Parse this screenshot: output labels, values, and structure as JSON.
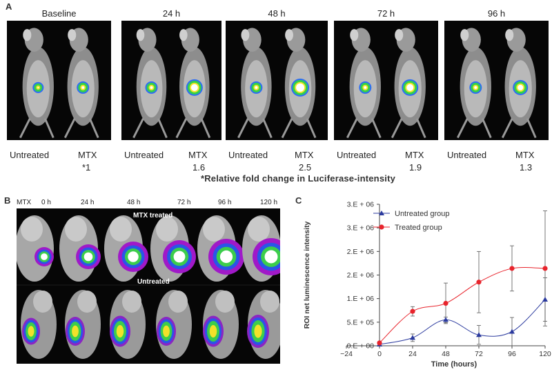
{
  "panelA": {
    "letter": "A",
    "timepoints": [
      {
        "label": "Baseline",
        "untreated": "Untreated",
        "treated": "MTX",
        "fold": "*1"
      },
      {
        "label": "24 h",
        "untreated": "Untreated",
        "treated": "MTX",
        "fold": "1.6"
      },
      {
        "label": "48 h",
        "untreated": "Untreated",
        "treated": "MTX",
        "fold": "2.5"
      },
      {
        "label": "72 h",
        "untreated": "Untreated",
        "treated": "MTX",
        "fold": "1.9"
      },
      {
        "label": "96 h",
        "untreated": "Untreated",
        "treated": "MTX",
        "fold": "1.3"
      }
    ],
    "footnote": "*Relative fold change in  Luciferase-intensity"
  },
  "panelB": {
    "letter": "B",
    "header": [
      "MTX",
      "0 h",
      "24 h",
      "48 h",
      "72 h",
      "96 h",
      "120 h"
    ],
    "row_labels": {
      "treated": "MTX treated",
      "untreated": "Untreated"
    }
  },
  "panelC": {
    "letter": "C"
  },
  "chart_data": {
    "type": "line",
    "xlabel": "Time (hours)",
    "ylabel": "ROI net luminescence intensity",
    "x": [
      0,
      24,
      48,
      72,
      96,
      120
    ],
    "xticks": [
      -24,
      0,
      24,
      48,
      72,
      96,
      120
    ],
    "xtick_labels": [
      "−24",
      "0",
      "24",
      "48",
      "72",
      "96",
      "120"
    ],
    "xlim": [
      -24,
      120
    ],
    "ylim": [
      0,
      3000000
    ],
    "yticks": [
      0,
      500000,
      1000000,
      1500000,
      2000000,
      2500000,
      3000000
    ],
    "ytick_labels": [
      "0.E + 00",
      "5.E + 05",
      "1.E + 06",
      "2.E + 06",
      "2.E + 06",
      "3.E + 06",
      "3.E + 06"
    ],
    "legend_position": "top-left",
    "series": [
      {
        "name": "Untreated group",
        "color": "#2b3a9e",
        "marker": "triangle",
        "values": [
          30000,
          170000,
          550000,
          230000,
          300000,
          980000
        ],
        "errors": [
          20000,
          80000,
          60000,
          200000,
          300000,
          460000
        ]
      },
      {
        "name": "Treated group",
        "color": "#e8242c",
        "marker": "circle",
        "values": [
          60000,
          730000,
          900000,
          1350000,
          1640000,
          1640000
        ],
        "errors": [
          30000,
          100000,
          430000,
          650000,
          480000,
          1220000
        ]
      }
    ]
  }
}
